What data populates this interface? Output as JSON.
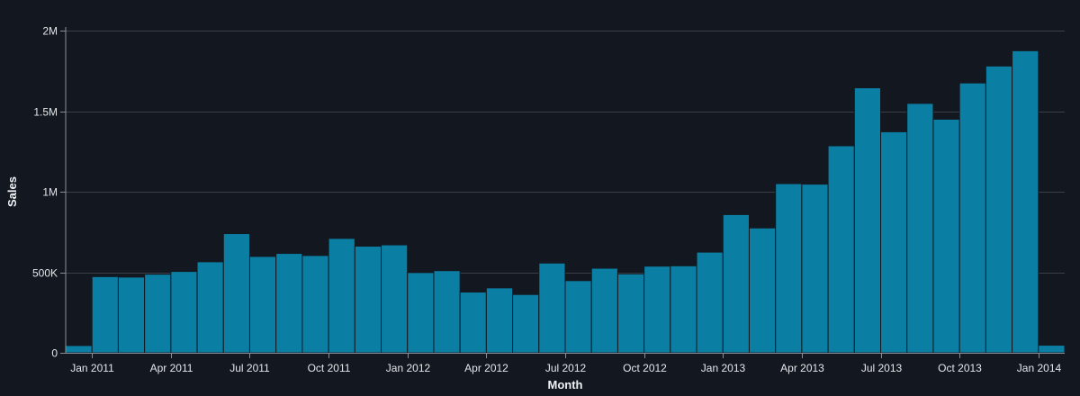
{
  "chart_data": {
    "type": "bar",
    "xlabel": "Month",
    "ylabel": "Sales",
    "ylim": [
      0,
      2000000
    ],
    "y_ticks": [
      {
        "value": 0,
        "label": "0"
      },
      {
        "value": 500000,
        "label": "500K"
      },
      {
        "value": 1000000,
        "label": "1M"
      },
      {
        "value": 1500000,
        "label": "1.5M"
      },
      {
        "value": 2000000,
        "label": "2M"
      }
    ],
    "x_ticks": [
      {
        "date": "2011-01",
        "label": "Jan 2011"
      },
      {
        "date": "2011-04",
        "label": "Apr 2011"
      },
      {
        "date": "2011-07",
        "label": "Jul 2011"
      },
      {
        "date": "2011-10",
        "label": "Oct 2011"
      },
      {
        "date": "2012-01",
        "label": "Jan 2012"
      },
      {
        "date": "2012-04",
        "label": "Apr 2012"
      },
      {
        "date": "2012-07",
        "label": "Jul 2012"
      },
      {
        "date": "2012-10",
        "label": "Oct 2012"
      },
      {
        "date": "2013-01",
        "label": "Jan 2013"
      },
      {
        "date": "2013-04",
        "label": "Apr 2013"
      },
      {
        "date": "2013-07",
        "label": "Jul 2013"
      },
      {
        "date": "2013-10",
        "label": "Oct 2013"
      },
      {
        "date": "2014-01",
        "label": "Jan 2014"
      }
    ],
    "categories": [
      "2010-12",
      "2011-01",
      "2011-02",
      "2011-03",
      "2011-04",
      "2011-05",
      "2011-06",
      "2011-07",
      "2011-08",
      "2011-09",
      "2011-10",
      "2011-11",
      "2011-12",
      "2012-01",
      "2012-02",
      "2012-03",
      "2012-04",
      "2012-05",
      "2012-06",
      "2012-07",
      "2012-08",
      "2012-09",
      "2012-10",
      "2012-11",
      "2012-12",
      "2013-01",
      "2013-02",
      "2013-03",
      "2013-04",
      "2013-05",
      "2013-06",
      "2013-07",
      "2013-08",
      "2013-09",
      "2013-10",
      "2013-11",
      "2013-12",
      "2014-01"
    ],
    "values": [
      45000,
      473000,
      470000,
      488000,
      505000,
      565000,
      740000,
      598000,
      617000,
      604000,
      710000,
      662000,
      670000,
      498000,
      510000,
      377000,
      403000,
      362000,
      557000,
      448000,
      525000,
      490000,
      538000,
      540000,
      625000,
      858000,
      775000,
      1050000,
      1047000,
      1285000,
      1645000,
      1372000,
      1548000,
      1450000,
      1675000,
      1780000,
      1875000,
      47000
    ],
    "bar_color": "#0b7ea3",
    "background_color": "#131820",
    "grid": true
  }
}
